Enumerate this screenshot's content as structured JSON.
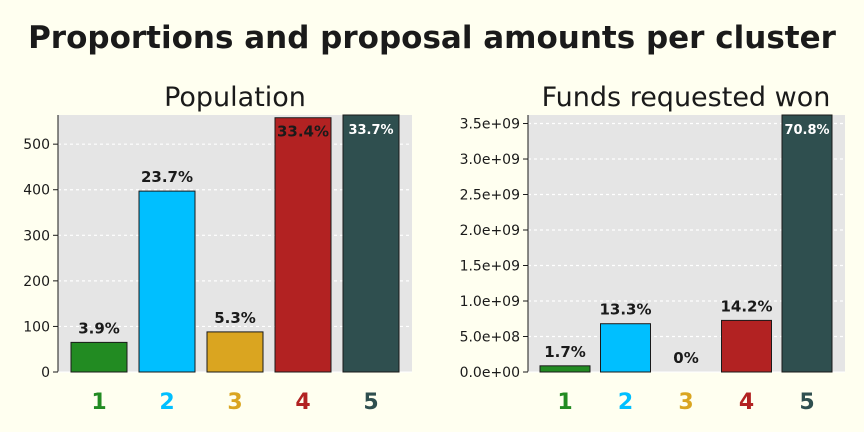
{
  "chart_data": {
    "suptitle": "Proportions and proposal amounts per cluster",
    "charts": [
      {
        "type": "bar",
        "title": "Population",
        "categories": [
          "1",
          "2",
          "3",
          "4",
          "5"
        ],
        "values": [
          65,
          397,
          88,
          558,
          564
        ],
        "data_labels": [
          "3.9%",
          "23.7%",
          "5.3%",
          "33.4%",
          "33.7%"
        ],
        "ylim": [
          0,
          564
        ],
        "yticks": [
          0,
          100,
          200,
          300,
          400,
          500
        ],
        "ytick_labels": [
          "0",
          "100",
          "200",
          "300",
          "400",
          "500"
        ],
        "xlabel": "",
        "ylabel": "",
        "grid": true
      },
      {
        "type": "bar",
        "title": "Funds requested won",
        "categories": [
          "1",
          "2",
          "3",
          "4",
          "5"
        ],
        "values": [
          87000000,
          680000000,
          0,
          727000000,
          3620000000
        ],
        "data_labels": [
          "1.7%",
          "13.3%",
          "0%",
          "14.2%",
          "70.8%"
        ],
        "ylim": [
          0,
          3620000000
        ],
        "yticks": [
          0,
          500000000,
          1000000000,
          1500000000,
          2000000000,
          2500000000,
          3000000000,
          3500000000
        ],
        "ytick_labels": [
          "0.0e+00",
          "5.0e+08",
          "1.0e+09",
          "1.5e+09",
          "2.0e+09",
          "2.5e+09",
          "3.0e+09",
          "3.5e+09"
        ],
        "xlabel": "",
        "ylabel": "",
        "grid": true
      }
    ],
    "colors": [
      "#228b22",
      "#00bfff",
      "#daa520",
      "#b22222",
      "#2f4f4f"
    ]
  }
}
